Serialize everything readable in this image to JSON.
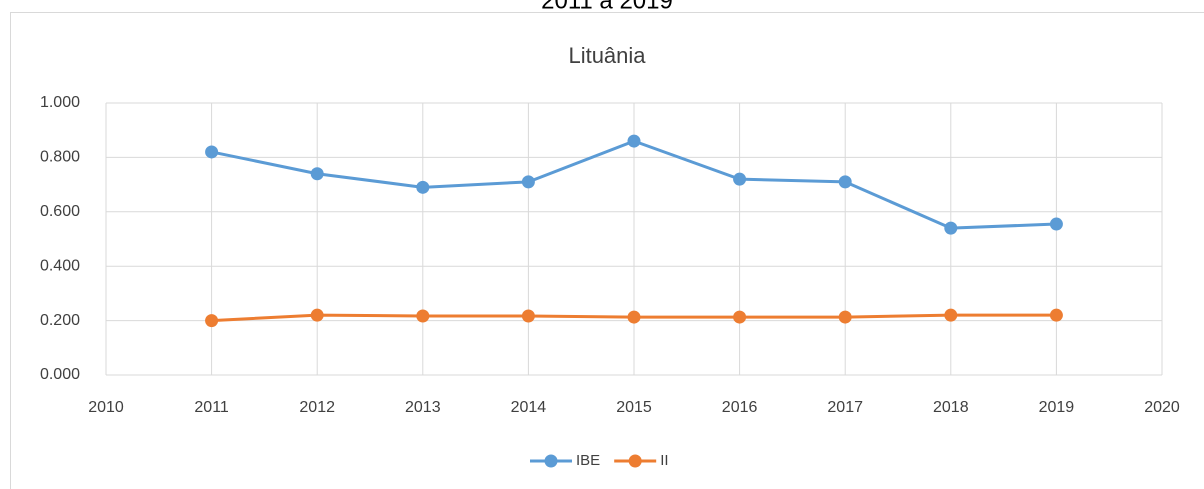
{
  "chart_data": {
    "type": "line",
    "heading": "2011 a 2019",
    "title": "Lituânia",
    "x": [
      2011,
      2012,
      2013,
      2014,
      2015,
      2016,
      2017,
      2018,
      2019
    ],
    "series": [
      {
        "name": "IBE",
        "color": "#5b9bd5",
        "values": [
          0.82,
          0.74,
          0.69,
          0.71,
          0.86,
          0.72,
          0.71,
          0.54,
          0.555
        ]
      },
      {
        "name": "II",
        "color": "#ed7d31",
        "values": [
          0.2,
          0.22,
          0.217,
          0.217,
          0.213,
          0.213,
          0.213,
          0.22,
          0.22
        ]
      }
    ],
    "xlim": [
      2010,
      2020
    ],
    "xticks": [
      2010,
      2011,
      2012,
      2013,
      2014,
      2015,
      2016,
      2017,
      2018,
      2019,
      2020
    ],
    "ylim": [
      0,
      1
    ],
    "yticks": [
      {
        "value": 0,
        "label": "0.000"
      },
      {
        "value": 0.2,
        "label": "0.200"
      },
      {
        "value": 0.4,
        "label": "0.400"
      },
      {
        "value": 0.6,
        "label": "0.600"
      },
      {
        "value": 0.8,
        "label": "0.800"
      },
      {
        "value": 1,
        "label": "1.000"
      }
    ],
    "grid": true,
    "legend": "bottom"
  }
}
